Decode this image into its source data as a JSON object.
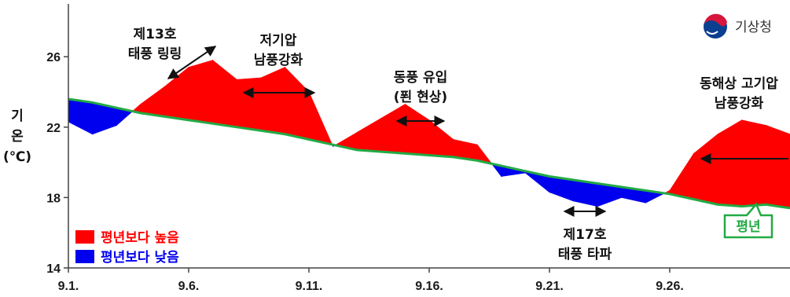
{
  "publisher": "기상청",
  "chart_data": {
    "type": "area",
    "ylabel": [
      "기",
      "온",
      "(℃)"
    ],
    "ylim": [
      14,
      29
    ],
    "yticks": [
      14,
      18,
      22,
      26
    ],
    "xlim": [
      1,
      31
    ],
    "xticks": [
      {
        "day": 1,
        "label": "9.1."
      },
      {
        "day": 6,
        "label": "9.6."
      },
      {
        "day": 11,
        "label": "9.11."
      },
      {
        "day": 16,
        "label": "9.16."
      },
      {
        "day": 21,
        "label": "9.21."
      },
      {
        "day": 26,
        "label": "9.26."
      }
    ],
    "x": [
      1,
      2,
      3,
      4,
      5,
      6,
      7,
      8,
      9,
      10,
      11,
      12,
      13,
      14,
      15,
      16,
      17,
      18,
      19,
      20,
      21,
      22,
      23,
      24,
      25,
      26,
      27,
      28,
      29,
      30,
      31
    ],
    "observed": [
      22.3,
      21.6,
      22.1,
      23.3,
      24.3,
      25.4,
      25.8,
      24.7,
      24.8,
      25.4,
      24.0,
      20.9,
      21.7,
      22.5,
      23.3,
      22.4,
      21.3,
      21.0,
      19.2,
      19.4,
      18.3,
      17.8,
      17.5,
      18.0,
      17.7,
      18.4,
      20.5,
      21.6,
      22.4,
      22.1,
      21.6
    ],
    "normal": [
      23.6,
      23.4,
      23.1,
      22.8,
      22.6,
      22.4,
      22.2,
      22.0,
      21.8,
      21.6,
      21.3,
      21.0,
      20.7,
      20.6,
      20.5,
      20.4,
      20.3,
      20.1,
      19.8,
      19.5,
      19.2,
      19.0,
      18.8,
      18.6,
      18.4,
      18.2,
      17.9,
      17.6,
      17.5,
      17.6,
      17.4
    ],
    "colors": {
      "above": "#ff0000",
      "below": "#0000ee",
      "normal_line": "#22aa44",
      "normal_label": "#22aa44"
    },
    "normal_label": "평년",
    "legend": [
      {
        "label": "평년보다 높음",
        "color": "#ff0000"
      },
      {
        "label": "평년보다 낮음",
        "color": "#0000ee"
      }
    ],
    "legend_position": "bottom-left",
    "annotations": [
      {
        "lines": [
          "제13호",
          "태풍 링링"
        ]
      },
      {
        "lines": [
          "저기압",
          "남풍강화"
        ]
      },
      {
        "lines": [
          "동풍 유입",
          "(푄 현상)"
        ]
      },
      {
        "lines": [
          "제17호",
          "태풍 타파"
        ]
      },
      {
        "lines": [
          "동해상 고기압",
          "남풍강화"
        ]
      }
    ]
  }
}
